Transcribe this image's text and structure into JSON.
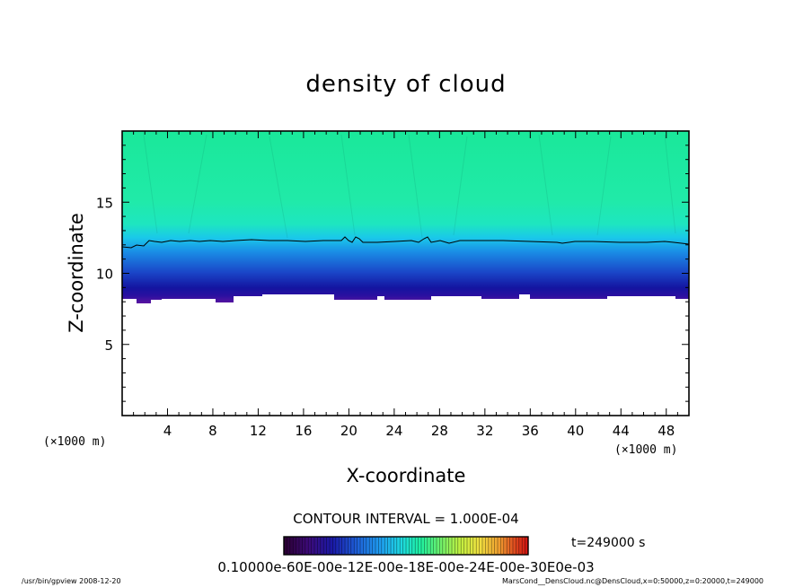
{
  "chart_data": {
    "type": "heatmap",
    "title": "density of cloud",
    "xlabel": "X-coordinate",
    "ylabel": "Z-coordinate",
    "x_unit": "(×1000 m)",
    "y_unit": "(×1000 m)",
    "xlim": [
      0,
      50
    ],
    "ylim": [
      0,
      20
    ],
    "x_ticks": [
      4,
      8,
      12,
      16,
      20,
      24,
      28,
      32,
      36,
      40,
      44,
      48
    ],
    "y_ticks": [
      5,
      10,
      15
    ],
    "contour_interval_text": "CONTOUR INTERVAL = 1.000E-04",
    "time_label": "t=249000 s",
    "colorbar_labels_text": "0.10000e-60E-00e-12E-00e-18E-00e-24E-00e-30E0e-03",
    "colorbar_colors": [
      "#2a0030",
      "#3c0a78",
      "#1a1aa8",
      "#1e60d8",
      "#1ea0f0",
      "#1ed8e0",
      "#1ef0a0",
      "#6cf06c",
      "#c0f040",
      "#f0e040",
      "#f0a030",
      "#e05020",
      "#d01010"
    ],
    "contour_z": 12.2,
    "field_layers": [
      {
        "z_top": 8.8,
        "color": "#6a1aa0"
      },
      {
        "z_top": 9.4,
        "color": "#1a1a9a"
      },
      {
        "z_top": 10.4,
        "color": "#1a5ad0"
      },
      {
        "z_top": 11.4,
        "color": "#1a9ae8"
      },
      {
        "z_top": 12.4,
        "color": "#1adae8"
      },
      {
        "z_top": 20,
        "color": "#20e8a0"
      }
    ],
    "footer_left": "/usr/bin/gpview  2008-12-20",
    "footer_right": "MarsCond__DensCloud.nc@DensCloud,x=0:50000,z=0:20000,t=249000"
  }
}
